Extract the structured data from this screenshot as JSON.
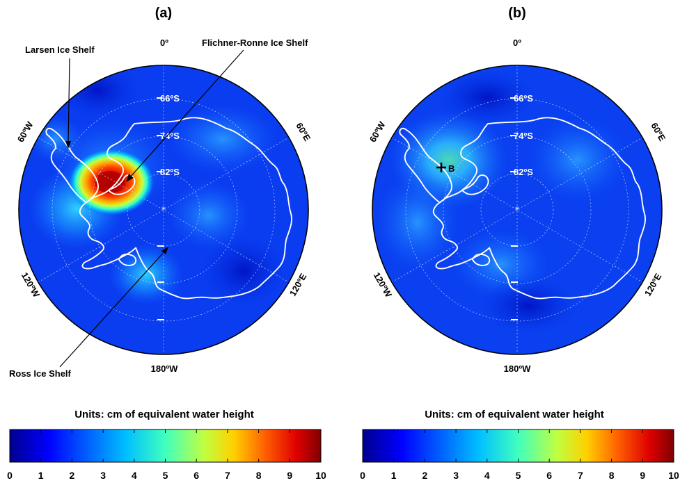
{
  "panels": [
    {
      "id": "a",
      "title": "(a)",
      "lon_labels": {
        "top": "0º",
        "left_upper": "60ºW",
        "right_upper": "60ºE",
        "left_lower": "120ºW",
        "right_lower": "120ºE",
        "bottom": "180ºW"
      },
      "lat_labels": [
        "66ºS",
        "74ºS",
        "82ºS"
      ],
      "annotations": [
        "Larsen Ice Shelf",
        "Flichner-Ronne Ice Shelf",
        "Ross Ice Shelf"
      ],
      "colorbar_title": "Units: cm of equivalent water height",
      "colorbar_ticks": [
        "0",
        "1",
        "2",
        "3",
        "4",
        "5",
        "6",
        "7",
        "8",
        "9",
        "10"
      ]
    },
    {
      "id": "b",
      "title": "(b)",
      "lon_labels": {
        "top": "0º",
        "left_upper": "60ºW",
        "right_upper": "60ºE",
        "left_lower": "120ºW",
        "right_lower": "120ºE",
        "bottom": "180ºW"
      },
      "lat_labels": [
        "66ºS",
        "74ºS",
        "82ºS"
      ],
      "point_label": "B",
      "colorbar_title": "Units: cm of equivalent water height",
      "colorbar_ticks": [
        "0",
        "1",
        "2",
        "3",
        "4",
        "5",
        "6",
        "7",
        "8",
        "9",
        "10"
      ]
    }
  ],
  "colors": {
    "jet": [
      "#00008f",
      "#0000ff",
      "#00a0ff",
      "#00ffff",
      "#7fff7f",
      "#ffff00",
      "#ff8000",
      "#ff0000",
      "#800000"
    ],
    "coast": "#ffffff"
  },
  "colorbar_range": [
    0,
    10
  ]
}
